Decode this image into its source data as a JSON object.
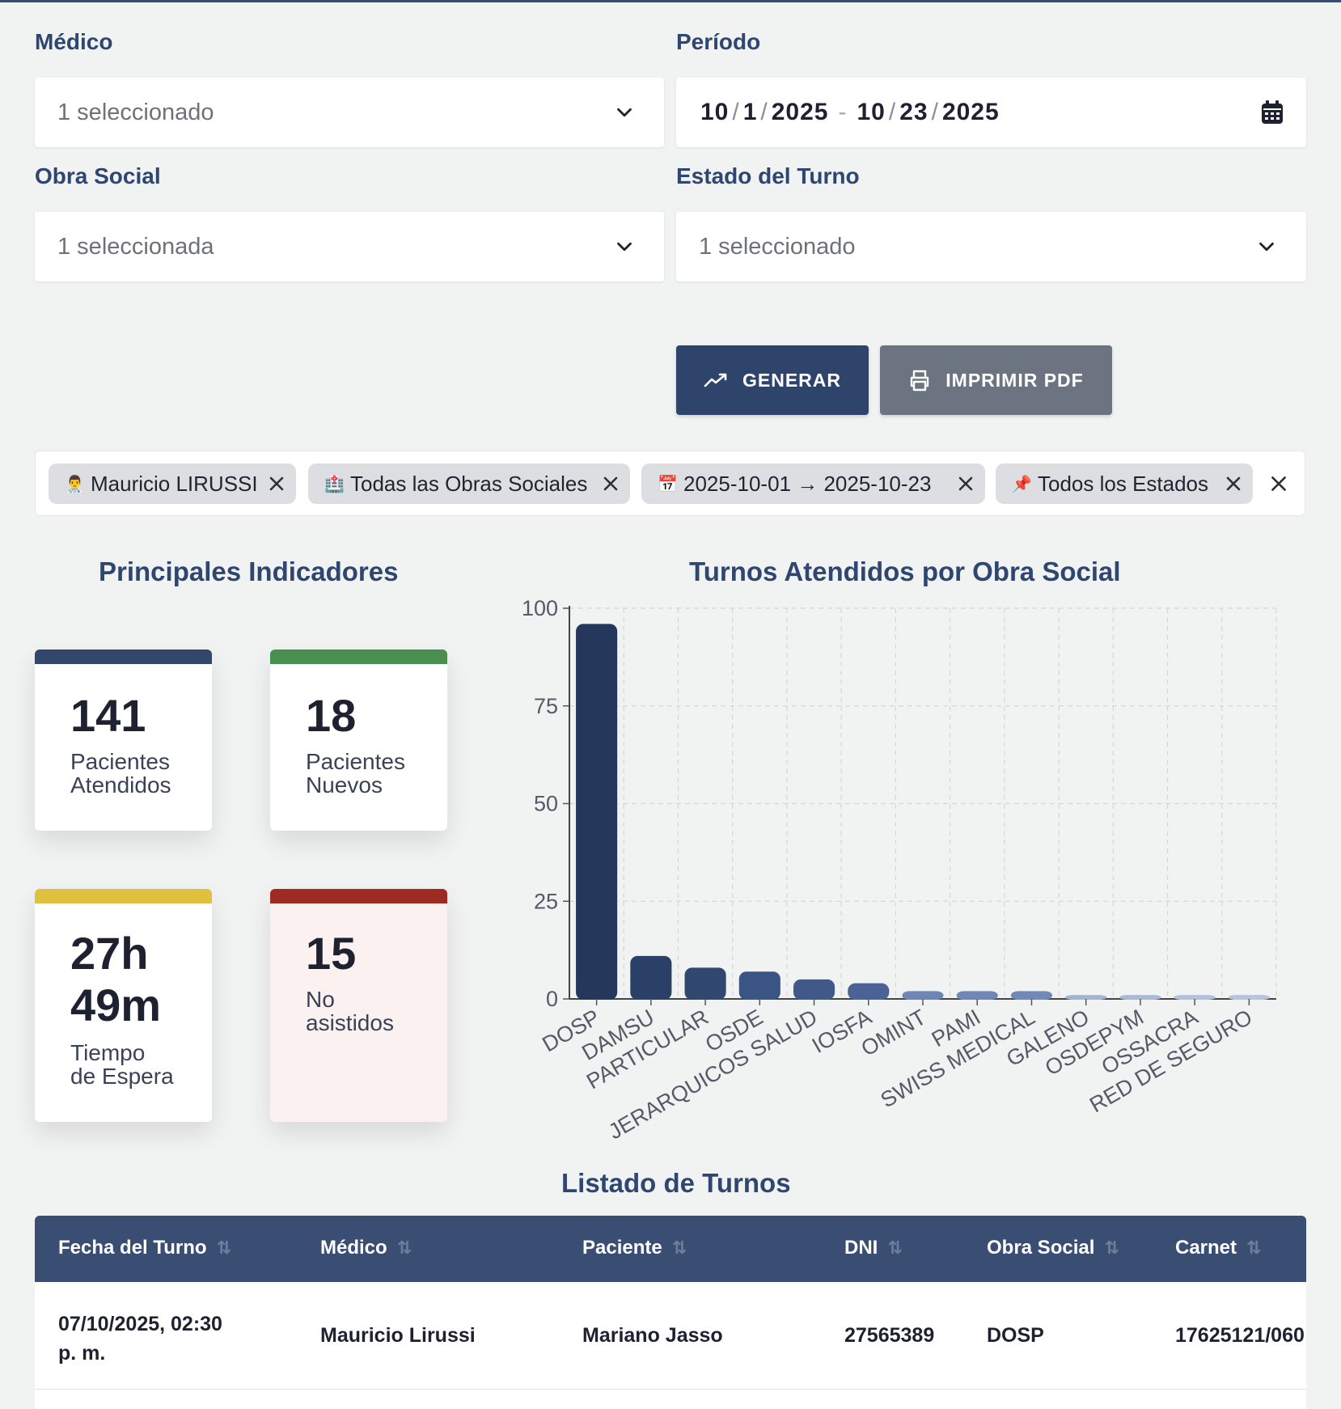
{
  "filters": {
    "medico_label": "Médico",
    "medico_value": "1 seleccionado",
    "periodo_label": "Período",
    "periodo_start": {
      "m": "10",
      "d": "1",
      "y": "2025"
    },
    "periodo_end": {
      "m": "10",
      "d": "23",
      "y": "2025"
    },
    "obra_label": "Obra Social",
    "obra_value": "1 seleccionada",
    "estado_label": "Estado del Turno",
    "estado_value": "1 seleccionado"
  },
  "actions": {
    "generar": "GENERAR",
    "imprimir": "IMPRIMIR PDF"
  },
  "chips": [
    {
      "icon": "doctor-icon",
      "glyph": "👨‍⚕️",
      "label": "Mauricio LIRUSSI"
    },
    {
      "icon": "hospital-icon",
      "glyph": "🏥",
      "label": "Todas las Obras Sociales"
    },
    {
      "icon": "calendar-icon",
      "glyph": "📅",
      "label": "2025-10-01 → 2025-10-23"
    },
    {
      "icon": "pushpin-icon",
      "glyph": "📌",
      "label": "Todos los Estados"
    }
  ],
  "indicators": {
    "title": "Principales Indicadores",
    "cards": [
      {
        "value": "141",
        "label_1": "Pacientes",
        "label_2": "Atendidos",
        "color": "#33466b"
      },
      {
        "value": "18",
        "label_1": "Pacientes",
        "label_2": "Nuevos",
        "color": "#4a8f52"
      },
      {
        "value_1": "27h",
        "value_2": "49m",
        "label_1": "Tiempo",
        "label_2": "de Espera",
        "color": "#e0c13f"
      },
      {
        "value": "15",
        "label_1": "No",
        "label_2": "asistidos",
        "color": "#9e2a24"
      }
    ]
  },
  "chart_title": "Turnos Atendidos por Obra Social",
  "chart_data": {
    "type": "bar",
    "title": "Turnos Atendidos por Obra Social",
    "categories": [
      "DOSP",
      "DAMSU",
      "PARTICULAR",
      "OSDE",
      "JERARQUICOS SALUD",
      "IOSFA",
      "OMINT",
      "PAMI",
      "SWISS MEDICAL",
      "GALENO",
      "OSDEPYM",
      "OSSACRA",
      "RED DE SEGURO"
    ],
    "values": [
      96,
      11,
      8,
      7,
      5,
      4,
      2,
      2,
      2,
      1,
      1,
      1,
      1
    ],
    "ylim": [
      0,
      100
    ],
    "yticks": [
      "0",
      "25",
      "50",
      "75",
      "100"
    ],
    "grid": true,
    "colors": [
      "#25375b",
      "#2b4066",
      "#304770",
      "#3a5583",
      "#41598a",
      "#4a6296",
      "#6e86b4",
      "#6f87b4",
      "#7089b6",
      "#a4b5d4",
      "#a9b9d6",
      "#b3c1db",
      "#b7c4dd"
    ]
  },
  "table": {
    "title": "Listado de Turnos",
    "sort_glyph": "⇅",
    "headers": [
      "Fecha del Turno",
      "Médico",
      "Paciente",
      "DNI",
      "Obra Social",
      "Carnet"
    ],
    "rows": [
      {
        "fecha_1": "07/10/2025, 02:30",
        "fecha_2": "p. m.",
        "medico": "Mauricio Lirussi",
        "paciente": "Mariano Jasso",
        "dni": "27565389",
        "obra": "DOSP",
        "carnet": "17625121/060"
      }
    ]
  }
}
